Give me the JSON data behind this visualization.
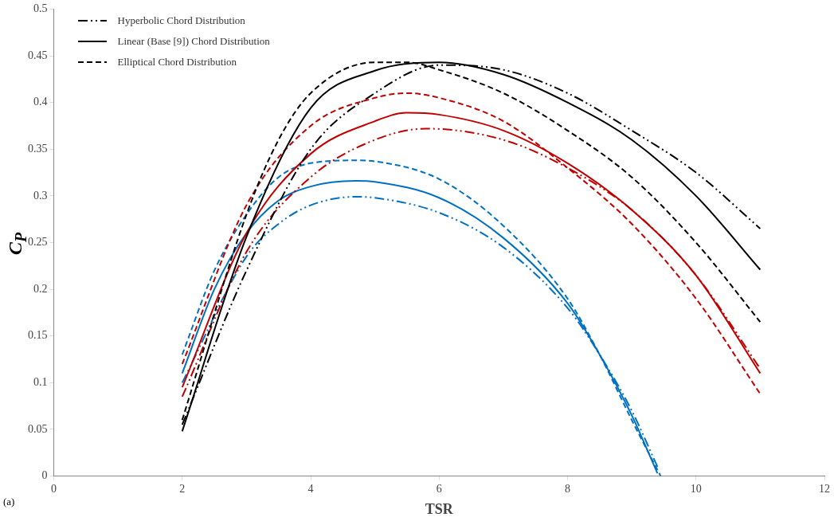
{
  "chart_data": {
    "type": "line",
    "xlabel": "TSR",
    "ylabel": "C$_{P}$",
    "xlim": [
      0,
      12
    ],
    "xticks": [
      0,
      2,
      4,
      6,
      8,
      10,
      12
    ],
    "ylim": [
      0,
      0.5
    ],
    "yticks": [
      0,
      0.05,
      0.1,
      0.15,
      0.2,
      0.25,
      0.3,
      0.35,
      0.4,
      0.45,
      0.5
    ],
    "grid": false,
    "legend": "top left",
    "marker": "none",
    "annotations": [
      "(a)"
    ],
    "series": [
      {
        "name": "Hyperbolic Chord Distribution",
        "color": "#000000",
        "line_style": "dashdot",
        "x": [
          2,
          3,
          4,
          5,
          6,
          7,
          8,
          9,
          10,
          11
        ],
        "values": [
          0.055,
          0.22,
          0.35,
          0.41,
          0.44,
          0.435,
          0.41,
          0.37,
          0.325,
          0.265
        ]
      },
      {
        "name": "Linear (Base [9]) Chord Distribution",
        "color": "#000000",
        "line_style": "solid",
        "x": [
          2,
          3,
          4,
          5,
          6,
          7,
          8,
          9,
          10,
          11
        ],
        "values": [
          0.048,
          0.256,
          0.394,
          0.434,
          0.443,
          0.43,
          0.4,
          0.36,
          0.3,
          0.221
        ]
      },
      {
        "name": "Elliptical Chord Distribution",
        "color": "#000000",
        "line_style": "dashed",
        "x": [
          2,
          3,
          3.5,
          4,
          5,
          5.5,
          6,
          7,
          8,
          9,
          10,
          11
        ],
        "values": [
          0.06,
          0.28,
          0.36,
          0.41,
          0.443,
          0.443,
          0.435,
          0.41,
          0.37,
          0.32,
          0.25,
          0.165
        ]
      },
      {
        "color": "#c00000",
        "line_style": "dashdot",
        "x": [
          2,
          3,
          4,
          5,
          5.8,
          7,
          8,
          9,
          10,
          11
        ],
        "values": [
          0.085,
          0.24,
          0.32,
          0.36,
          0.372,
          0.36,
          0.33,
          0.285,
          0.215,
          0.115
        ]
      },
      {
        "color": "#c00000",
        "line_style": "solid",
        "x": [
          2,
          3,
          4,
          5,
          5.5,
          6,
          7,
          8,
          9,
          10,
          11
        ],
        "values": [
          0.095,
          0.26,
          0.345,
          0.38,
          0.389,
          0.387,
          0.37,
          0.335,
          0.285,
          0.215,
          0.11
        ]
      },
      {
        "color": "#c00000",
        "line_style": "dashed",
        "x": [
          2,
          3,
          4,
          5,
          5.5,
          6,
          7,
          8,
          9,
          10,
          11
        ],
        "values": [
          0.12,
          0.29,
          0.375,
          0.405,
          0.41,
          0.405,
          0.38,
          0.33,
          0.27,
          0.19,
          0.088
        ]
      },
      {
        "color": "#0070c0",
        "line_style": "dashdot",
        "x": [
          2,
          3,
          3.5,
          4,
          4.7,
          5,
          6,
          7,
          8,
          8.5,
          9,
          9.4
        ],
        "values": [
          0.1,
          0.235,
          0.27,
          0.29,
          0.299,
          0.298,
          0.282,
          0.245,
          0.18,
          0.13,
          0.07,
          0.01
        ]
      },
      {
        "color": "#0070c0",
        "line_style": "solid",
        "x": [
          2,
          2.5,
          3,
          3.5,
          4,
          4.7,
          5,
          6,
          7,
          8,
          8.5,
          9,
          9.4
        ],
        "values": [
          0.11,
          0.2,
          0.26,
          0.295,
          0.31,
          0.316,
          0.315,
          0.298,
          0.255,
          0.185,
          0.13,
          0.065,
          0.003
        ]
      },
      {
        "color": "#0070c0",
        "line_style": "dashed",
        "x": [
          2,
          2.5,
          3,
          3.5,
          4,
          4.7,
          5,
          6,
          7,
          8,
          8.5,
          9,
          9.45
        ],
        "values": [
          0.13,
          0.22,
          0.28,
          0.32,
          0.335,
          0.338,
          0.337,
          0.318,
          0.268,
          0.19,
          0.13,
          0.06,
          0
        ]
      }
    ]
  }
}
